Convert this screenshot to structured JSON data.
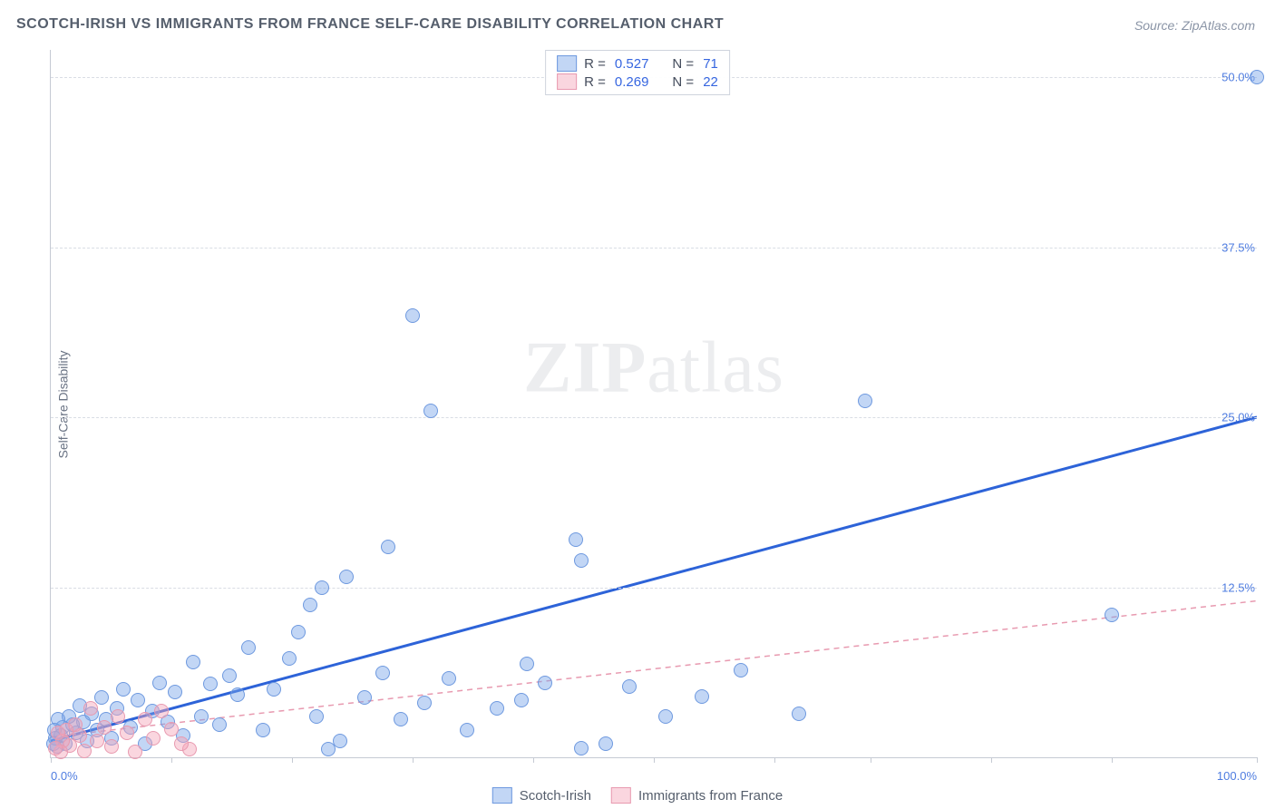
{
  "title": "SCOTCH-IRISH VS IMMIGRANTS FROM FRANCE SELF-CARE DISABILITY CORRELATION CHART",
  "source": "Source: ZipAtlas.com",
  "ylabel": "Self-Care Disability",
  "watermark_a": "ZIP",
  "watermark_b": "atlas",
  "chart": {
    "type": "scatter",
    "xlim": [
      0,
      100
    ],
    "ylim": [
      0,
      52
    ],
    "xticks": [
      0,
      10,
      20,
      30,
      40,
      50,
      60,
      68,
      78,
      88,
      100
    ],
    "xtick_labels": {
      "0": "0.0%",
      "100": "100.0%"
    },
    "yticks": [
      12.5,
      25.0,
      37.5,
      50.0
    ],
    "ytick_labels": [
      "12.5%",
      "25.0%",
      "37.5%",
      "50.0%"
    ],
    "grid_color": "#d9dde4",
    "axis_color": "#c5cad3",
    "background_color": "#ffffff",
    "series": [
      {
        "name": "Scotch-Irish",
        "fill": "rgba(120,165,232,0.45)",
        "stroke": "#6e99df",
        "marker_radius": 7,
        "trend": {
          "y_at_x0": 1.2,
          "y_at_x100": 25.0,
          "stroke": "#2d63d8",
          "width": 3,
          "dash": "none"
        },
        "R": "0.527",
        "N": "71",
        "points": [
          [
            100,
            50.0
          ],
          [
            67.5,
            26.2
          ],
          [
            30.0,
            32.5
          ],
          [
            31.5,
            25.5
          ],
          [
            43.5,
            16.0
          ],
          [
            28.0,
            15.5
          ],
          [
            44.0,
            14.5
          ],
          [
            22.5,
            12.5
          ],
          [
            21.5,
            11.2
          ],
          [
            24.5,
            13.3
          ],
          [
            39.0,
            4.2
          ],
          [
            88.0,
            10.5
          ],
          [
            62.0,
            3.2
          ],
          [
            57.2,
            6.4
          ],
          [
            54.0,
            4.5
          ],
          [
            51.0,
            3.0
          ],
          [
            48.0,
            5.2
          ],
          [
            46.0,
            1.0
          ],
          [
            44.0,
            0.7
          ],
          [
            41.0,
            5.5
          ],
          [
            39.5,
            6.9
          ],
          [
            37.0,
            3.6
          ],
          [
            34.5,
            2.0
          ],
          [
            33.0,
            5.8
          ],
          [
            31.0,
            4.0
          ],
          [
            29.0,
            2.8
          ],
          [
            27.5,
            6.2
          ],
          [
            26.0,
            4.4
          ],
          [
            24.0,
            1.2
          ],
          [
            23.0,
            0.6
          ],
          [
            22.0,
            3.0
          ],
          [
            20.5,
            9.2
          ],
          [
            19.8,
            7.3
          ],
          [
            18.5,
            5.0
          ],
          [
            17.6,
            2.0
          ],
          [
            16.4,
            8.1
          ],
          [
            15.5,
            4.6
          ],
          [
            14.8,
            6.0
          ],
          [
            14.0,
            2.4
          ],
          [
            13.2,
            5.4
          ],
          [
            12.5,
            3.0
          ],
          [
            11.8,
            7.0
          ],
          [
            11.0,
            1.6
          ],
          [
            10.3,
            4.8
          ],
          [
            9.7,
            2.6
          ],
          [
            9.0,
            5.5
          ],
          [
            8.4,
            3.4
          ],
          [
            7.8,
            1.0
          ],
          [
            7.2,
            4.2
          ],
          [
            6.6,
            2.2
          ],
          [
            6.0,
            5.0
          ],
          [
            5.5,
            3.6
          ],
          [
            5.0,
            1.4
          ],
          [
            4.6,
            2.8
          ],
          [
            4.2,
            4.4
          ],
          [
            3.8,
            2.0
          ],
          [
            3.4,
            3.2
          ],
          [
            3.0,
            1.2
          ],
          [
            2.7,
            2.6
          ],
          [
            2.4,
            3.8
          ],
          [
            2.1,
            1.8
          ],
          [
            1.8,
            2.4
          ],
          [
            1.5,
            3.0
          ],
          [
            1.2,
            1.0
          ],
          [
            1.0,
            2.2
          ],
          [
            0.8,
            1.6
          ],
          [
            0.6,
            2.8
          ],
          [
            0.5,
            0.8
          ],
          [
            0.4,
            1.4
          ],
          [
            0.3,
            2.0
          ],
          [
            0.2,
            1.0
          ]
        ]
      },
      {
        "name": "Immigrants from France",
        "fill": "rgba(244,164,184,0.45)",
        "stroke": "#e89ab0",
        "marker_radius": 7,
        "trend": {
          "y_at_x0": 1.5,
          "y_at_x100": 11.5,
          "stroke": "#e89ab0",
          "width": 1.5,
          "dash": "6 5"
        },
        "R": "0.269",
        "N": "22",
        "points": [
          [
            11.5,
            0.6
          ],
          [
            10.8,
            1.0
          ],
          [
            10.0,
            2.1
          ],
          [
            9.2,
            3.4
          ],
          [
            8.5,
            1.4
          ],
          [
            7.8,
            2.8
          ],
          [
            7.0,
            0.4
          ],
          [
            6.3,
            1.8
          ],
          [
            5.6,
            3.0
          ],
          [
            5.0,
            0.8
          ],
          [
            4.4,
            2.2
          ],
          [
            3.8,
            1.2
          ],
          [
            3.3,
            3.6
          ],
          [
            2.8,
            0.5
          ],
          [
            2.4,
            1.6
          ],
          [
            2.0,
            2.4
          ],
          [
            1.6,
            0.9
          ],
          [
            1.3,
            2.0
          ],
          [
            1.0,
            1.2
          ],
          [
            0.8,
            0.4
          ],
          [
            0.6,
            1.8
          ],
          [
            0.4,
            0.7
          ]
        ]
      }
    ]
  },
  "legend_box": {
    "rows": [
      {
        "swatch_fill": "rgba(120,165,232,0.45)",
        "swatch_stroke": "#6e99df",
        "r_label": "R =",
        "r_val": "0.527",
        "n_label": "N =",
        "n_val": "71"
      },
      {
        "swatch_fill": "rgba(244,164,184,0.45)",
        "swatch_stroke": "#e89ab0",
        "r_label": "R =",
        "r_val": "0.269",
        "n_label": "N =",
        "n_val": "22"
      }
    ]
  },
  "bottom_legend": [
    {
      "swatch_fill": "rgba(120,165,232,0.45)",
      "swatch_stroke": "#6e99df",
      "label": "Scotch-Irish"
    },
    {
      "swatch_fill": "rgba(244,164,184,0.45)",
      "swatch_stroke": "#e89ab0",
      "label": "Immigrants from France"
    }
  ]
}
